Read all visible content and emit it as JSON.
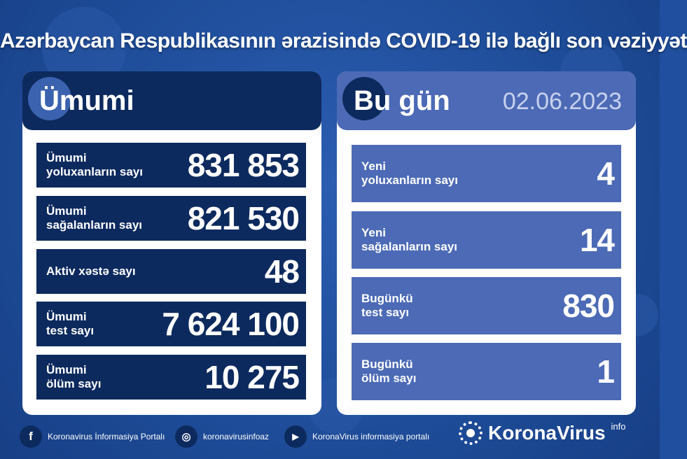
{
  "title": "Azərbaycan Respublikasının ərazisində COVID-19 ilə bağlı son vəziyyət",
  "total": {
    "heading": "Ümumi",
    "rows": [
      {
        "label1": "Ümumi",
        "label2": "yoluxanların sayı",
        "value": "831 853"
      },
      {
        "label1": "Ümumi",
        "label2": "sağalanların sayı",
        "value": "821 530"
      },
      {
        "label1": "Aktiv xəstə sayı",
        "label2": "",
        "value": "48"
      },
      {
        "label1": "Ümumi",
        "label2": "test sayı",
        "value": "7 624 100"
      },
      {
        "label1": "Ümumi",
        "label2": "ölüm sayı",
        "value": "10 275"
      }
    ]
  },
  "today": {
    "heading": "Bu gün",
    "date": "02.06.2023",
    "rows": [
      {
        "label1": "Yeni",
        "label2": "yoluxanların sayı",
        "value": "4"
      },
      {
        "label1": "Yeni",
        "label2": "sağalanların sayı",
        "value": "14"
      },
      {
        "label1": "Bugünkü",
        "label2": "test sayı",
        "value": "830"
      },
      {
        "label1": "Bugünkü",
        "label2": "ölüm sayı",
        "value": "1"
      }
    ]
  },
  "footer": {
    "facebook": "Koronavirus İnformasiya Portalı",
    "instagram": "koronavirusinfoaz",
    "youtube": "KoronaVirus informasiya portalı",
    "brand": "KoronaVirus",
    "brand_sup": "info"
  },
  "colors": {
    "background": "#1f4f9e",
    "dark_navy": "#0d2a5e",
    "today_blue": "#4c6ab5"
  }
}
